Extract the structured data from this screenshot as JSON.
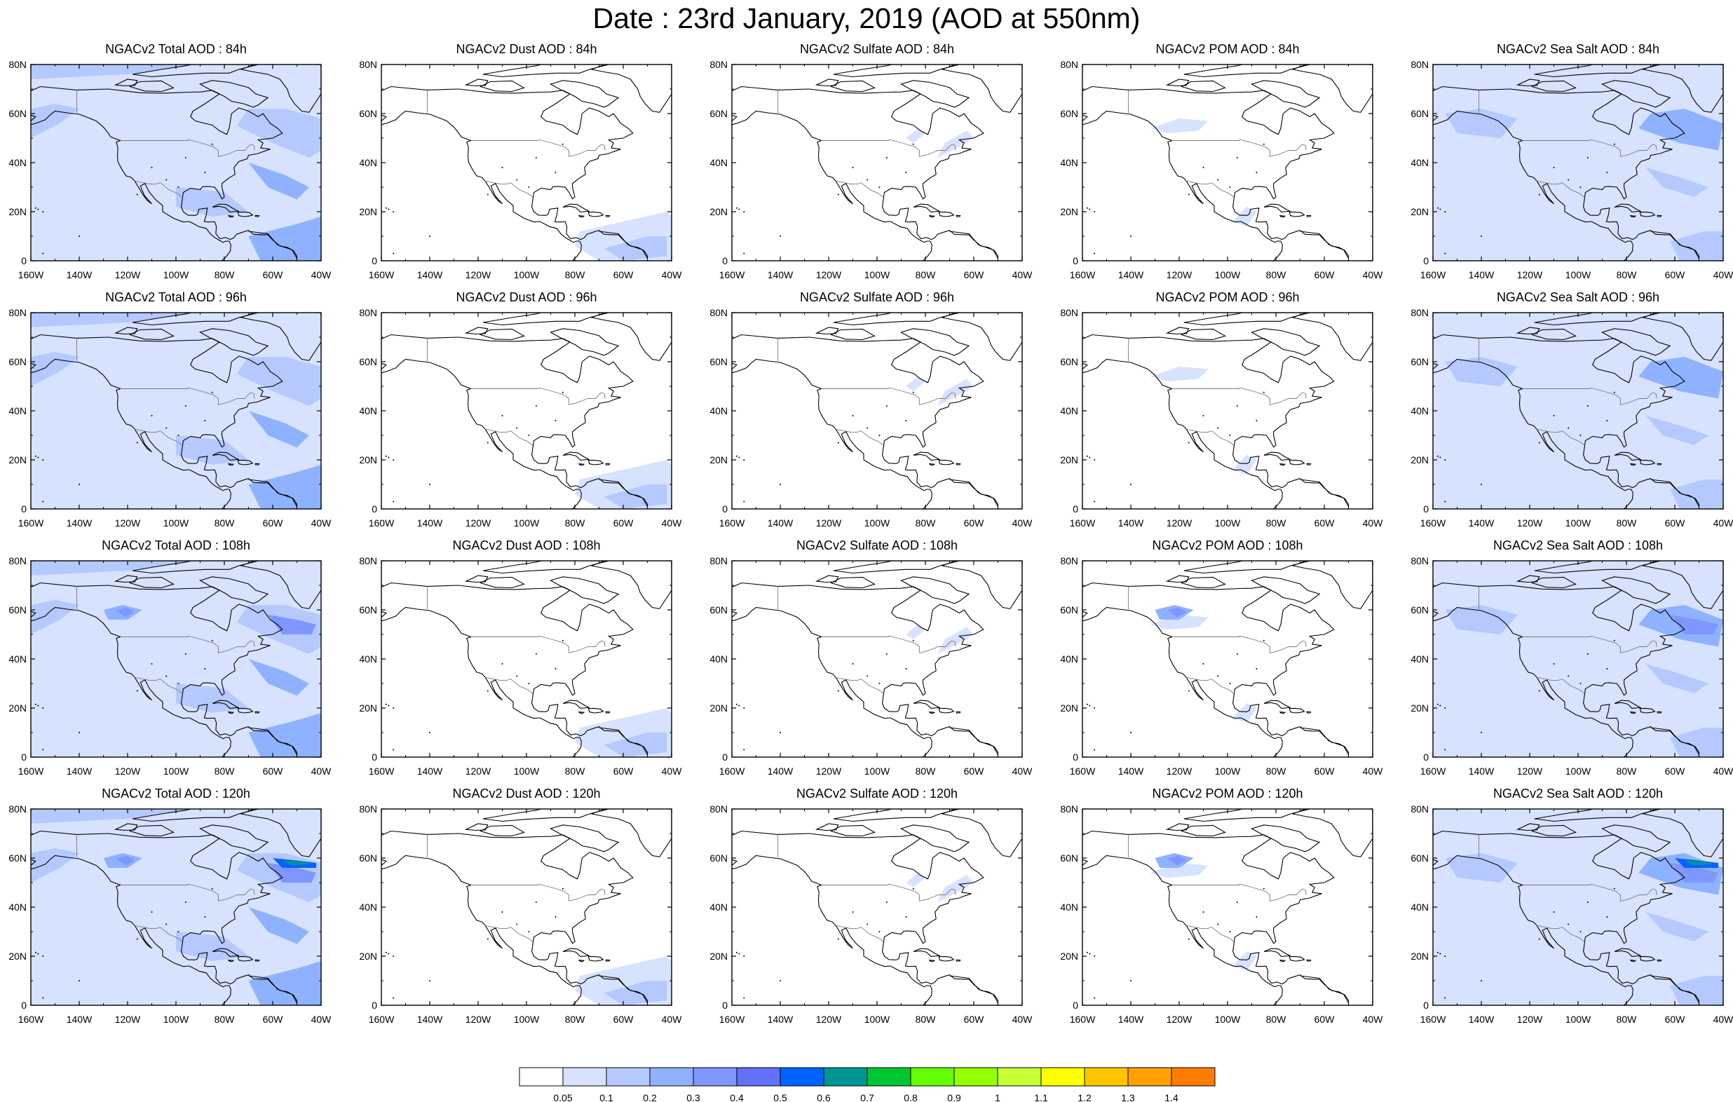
{
  "title": "Date : 23rd January, 2019 (AOD at 550nm)",
  "axes": {
    "lat_ticks": [
      "0",
      "20N",
      "40N",
      "60N",
      "80N"
    ],
    "lon_ticks": [
      "160W",
      "140W",
      "120W",
      "100W",
      "80W",
      "60W",
      "40W"
    ],
    "lat_range": [
      0,
      80
    ],
    "lon_range": [
      -160,
      -40
    ]
  },
  "species": [
    "Total",
    "Dust",
    "Sulfate",
    "POM",
    "Sea Salt"
  ],
  "forecast_hours": [
    "84h",
    "96h",
    "108h",
    "120h"
  ],
  "panels": [
    {
      "title": "NGACv2 Total AOD : 84h",
      "species": "total",
      "hour": 84
    },
    {
      "title": "NGACv2 Dust AOD : 84h",
      "species": "dust",
      "hour": 84
    },
    {
      "title": "NGACv2 Sulfate AOD : 84h",
      "species": "sulfate",
      "hour": 84
    },
    {
      "title": "NGACv2 POM AOD : 84h",
      "species": "pom",
      "hour": 84
    },
    {
      "title": "NGACv2 Sea Salt AOD : 84h",
      "species": "seasalt",
      "hour": 84
    },
    {
      "title": "NGACv2 Total AOD : 96h",
      "species": "total",
      "hour": 96
    },
    {
      "title": "NGACv2 Dust AOD : 96h",
      "species": "dust",
      "hour": 96
    },
    {
      "title": "NGACv2 Sulfate AOD : 96h",
      "species": "sulfate",
      "hour": 96
    },
    {
      "title": "NGACv2 POM AOD : 96h",
      "species": "pom",
      "hour": 96
    },
    {
      "title": "NGACv2 Sea Salt AOD : 96h",
      "species": "seasalt",
      "hour": 96
    },
    {
      "title": "NGACv2 Total AOD : 108h",
      "species": "total",
      "hour": 108
    },
    {
      "title": "NGACv2 Dust AOD : 108h",
      "species": "dust",
      "hour": 108
    },
    {
      "title": "NGACv2 Sulfate AOD : 108h",
      "species": "sulfate",
      "hour": 108
    },
    {
      "title": "NGACv2 POM AOD : 108h",
      "species": "pom",
      "hour": 108
    },
    {
      "title": "NGACv2 Sea Salt AOD : 108h",
      "species": "seasalt",
      "hour": 108
    },
    {
      "title": "NGACv2 Total AOD : 120h",
      "species": "total",
      "hour": 120
    },
    {
      "title": "NGACv2 Dust AOD : 120h",
      "species": "dust",
      "hour": 120
    },
    {
      "title": "NGACv2 Sulfate AOD : 120h",
      "species": "sulfate",
      "hour": 120
    },
    {
      "title": "NGACv2 POM AOD : 120h",
      "species": "pom",
      "hour": 120
    },
    {
      "title": "NGACv2 Sea Salt  AOD : 120h",
      "species": "seasalt",
      "hour": 120
    }
  ],
  "colorbar": {
    "boundaries": [
      "0.05",
      "0.1",
      "0.2",
      "0.3",
      "0.4",
      "0.5",
      "0.6",
      "0.7",
      "0.8",
      "0.9",
      "1",
      "1.1",
      "1.2",
      "1.3",
      "1.4"
    ],
    "colors": [
      "#ffffff",
      "#d6e2ff",
      "#b5c9ff",
      "#8eb2ff",
      "#7f96ff",
      "#6370f8",
      "#0063ff",
      "#009696",
      "#00c633",
      "#63ff00",
      "#96ff00",
      "#c6ff33",
      "#ffff00",
      "#ffc600",
      "#ffa000",
      "#ff7c00",
      "#ff1900"
    ]
  },
  "colors": {
    "coastline": "#000000",
    "border": "#7a7a7a",
    "frame": "#000000"
  }
}
